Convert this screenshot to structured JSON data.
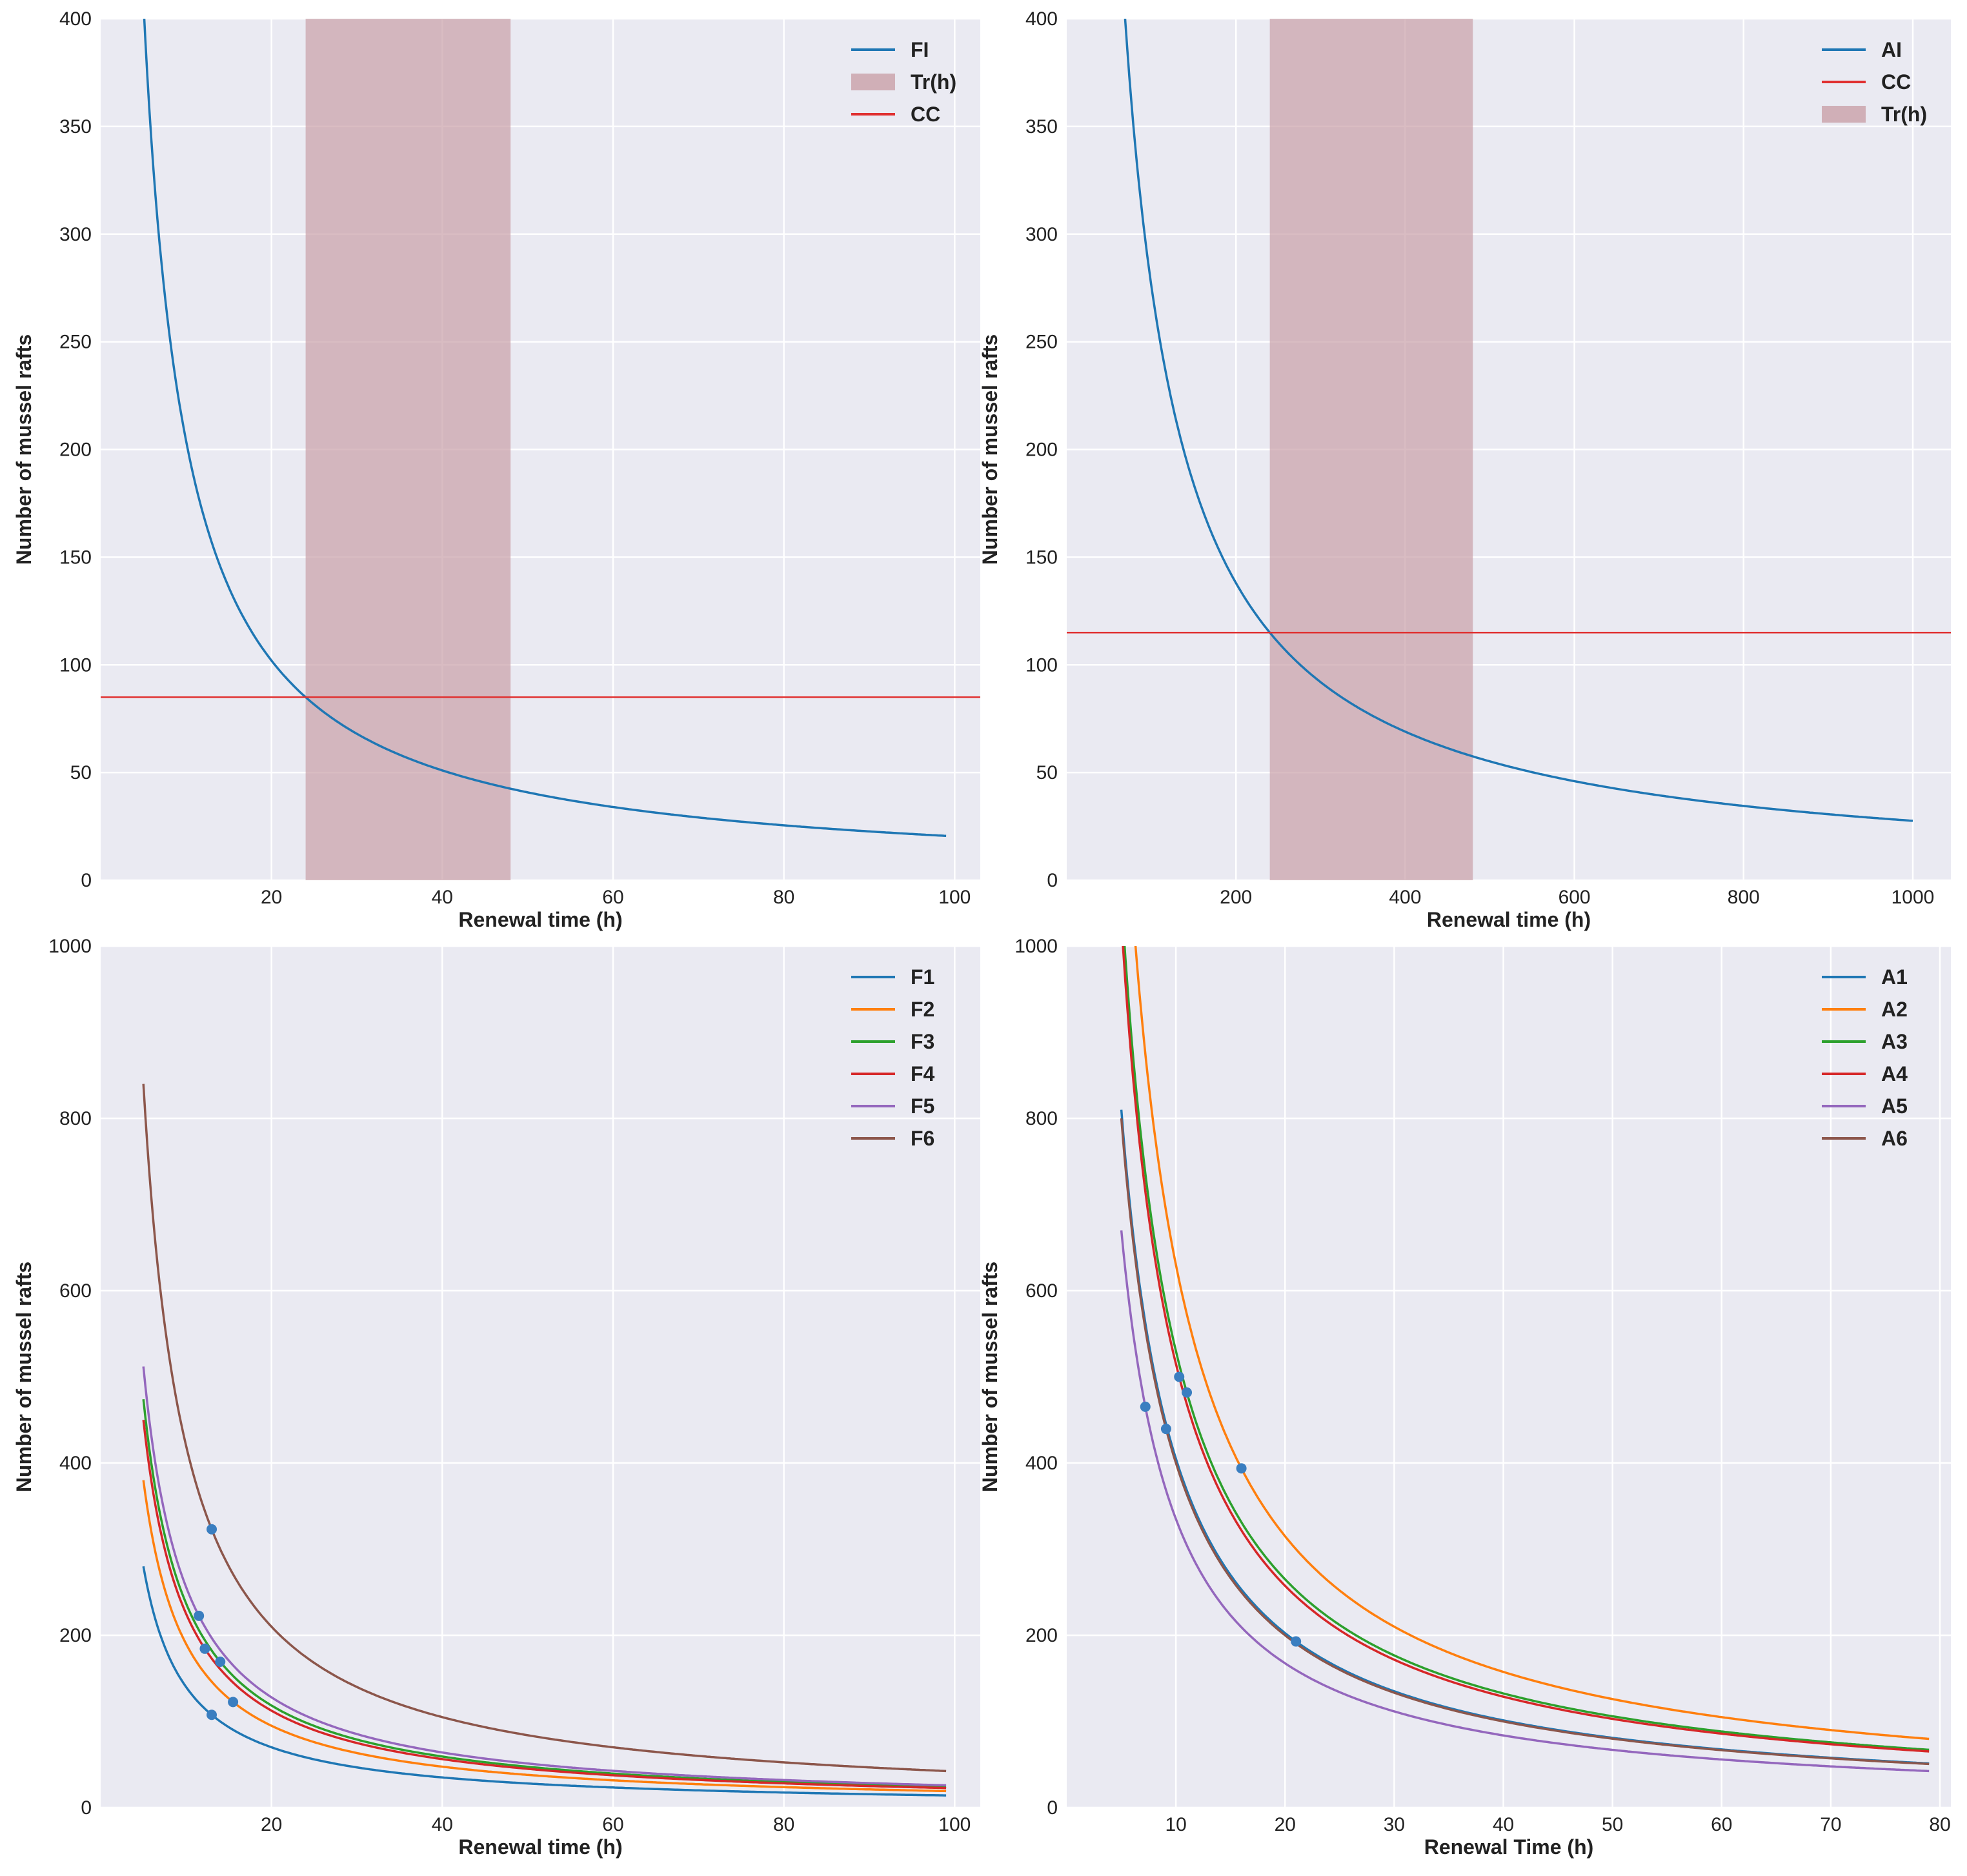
{
  "chart_data": [
    {
      "type": "line",
      "id": "top-left",
      "xlabel": "Renewal time (h)",
      "ylabel": "Number of mussel rafts",
      "xlim": [
        0,
        103
      ],
      "ylim": [
        0,
        400
      ],
      "xticks": [
        20,
        40,
        60,
        80,
        100
      ],
      "yticks": [
        0,
        50,
        100,
        150,
        200,
        250,
        300,
        350,
        400
      ],
      "grid": true,
      "legend_position": "top-right",
      "curve": {
        "name": "FI",
        "color": "#1f77b4",
        "k": 2040,
        "x_range": [
          5,
          99
        ]
      },
      "hline": {
        "name": "CC",
        "color": "#e03030",
        "y": 85
      },
      "span": {
        "name": "Tr(h)",
        "color": "#c9a0a8",
        "x_range": [
          24,
          48
        ]
      },
      "legend": [
        {
          "label": "FI",
          "kind": "line",
          "color": "#1f77b4"
        },
        {
          "label": "Tr(h)",
          "kind": "patch",
          "color": "#c9a0a8"
        },
        {
          "label": "CC",
          "kind": "line",
          "color": "#e03030"
        }
      ]
    },
    {
      "type": "line",
      "id": "top-right",
      "xlabel": "Renewal time (h)",
      "ylabel": "Number of mussel rafts",
      "xlim": [
        0,
        1045
      ],
      "ylim": [
        0,
        400
      ],
      "xticks": [
        200,
        400,
        600,
        800,
        1000
      ],
      "yticks": [
        0,
        50,
        100,
        150,
        200,
        250,
        300,
        350,
        400
      ],
      "grid": true,
      "legend_position": "top-right",
      "curve": {
        "name": "AI",
        "color": "#1f77b4",
        "k": 27600,
        "x_range": [
          67,
          1000
        ]
      },
      "hline": {
        "name": "CC",
        "color": "#e03030",
        "y": 115
      },
      "span": {
        "name": "Tr(h)",
        "color": "#c9a0a8",
        "x_range": [
          240,
          480
        ]
      },
      "legend": [
        {
          "label": "AI",
          "kind": "line",
          "color": "#1f77b4"
        },
        {
          "label": "CC",
          "kind": "line",
          "color": "#e03030"
        },
        {
          "label": "Tr(h)",
          "kind": "patch",
          "color": "#c9a0a8"
        }
      ]
    },
    {
      "type": "line",
      "id": "bottom-left",
      "xlabel": "Renewal time (h)",
      "ylabel": "Number of mussel rafts",
      "xlim": [
        0,
        103
      ],
      "ylim": [
        0,
        1000
      ],
      "xticks": [
        20,
        40,
        60,
        80,
        100
      ],
      "yticks": [
        0,
        200,
        400,
        600,
        800,
        1000
      ],
      "grid": true,
      "legend_position": "top-right",
      "x_range": [
        5,
        99
      ],
      "series": [
        {
          "name": "F1",
          "color": "#1f77b4",
          "k": 1400,
          "point_x": 13
        },
        {
          "name": "F2",
          "color": "#ff7f0e",
          "k": 1900,
          "point_x": 15.5
        },
        {
          "name": "F3",
          "color": "#2ca02c",
          "k": 2370,
          "point_x": 14
        },
        {
          "name": "F4",
          "color": "#d62728",
          "k": 2250,
          "point_x": 12.2
        },
        {
          "name": "F5",
          "color": "#9467bd",
          "k": 2560,
          "point_x": 11.5
        },
        {
          "name": "F6",
          "color": "#8c564b",
          "k": 4200,
          "point_x": 13
        }
      ]
    },
    {
      "type": "line",
      "id": "bottom-right",
      "xlabel": "Renewal Time (h)",
      "ylabel": "Number of mussel rafts",
      "xlim": [
        0,
        81
      ],
      "ylim": [
        0,
        1000
      ],
      "xticks": [
        10,
        20,
        30,
        40,
        50,
        60,
        70,
        80
      ],
      "yticks": [
        0,
        200,
        400,
        600,
        800,
        1000
      ],
      "grid": true,
      "legend_position": "top-right",
      "x_range": [
        5,
        79
      ],
      "series": [
        {
          "name": "A1",
          "color": "#1f77b4",
          "k": 4050,
          "point_x": 21
        },
        {
          "name": "A2",
          "color": "#ff7f0e",
          "k": 6300,
          "point_x": 16
        },
        {
          "name": "A3",
          "color": "#2ca02c",
          "k": 5300,
          "point_x": 11
        },
        {
          "name": "A4",
          "color": "#d62728",
          "k": 5150,
          "point_x": 10.3
        },
        {
          "name": "A5",
          "color": "#9467bd",
          "k": 3350,
          "point_x": 7.2
        },
        {
          "name": "A6",
          "color": "#8c564b",
          "k": 4000,
          "point_x": 9.1
        }
      ]
    }
  ]
}
